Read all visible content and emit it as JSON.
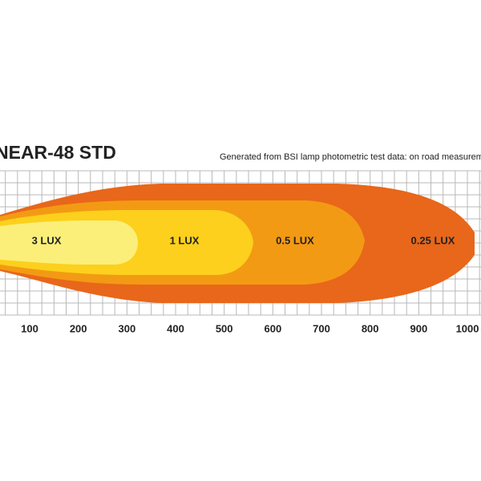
{
  "title": "NEAR-48 STD",
  "subtitle": "Generated from BSI lamp photometric test data: on road measuremen",
  "zones": [
    "3 LUX",
    "1 LUX",
    "0.5 LUX",
    "0.25 LUX"
  ],
  "axis_ticks": [
    "100",
    "200",
    "300",
    "400",
    "500",
    "600",
    "700",
    "800",
    "900",
    "1000"
  ]
}
